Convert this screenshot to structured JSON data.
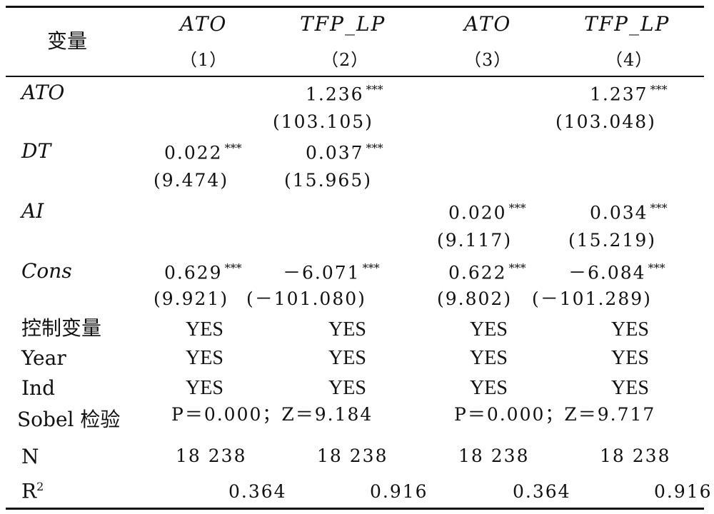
{
  "header": {
    "variable": "变量",
    "columns": [
      {
        "var": "ATO",
        "num": "（1）"
      },
      {
        "var": "TFP_LP",
        "num": "（2）"
      },
      {
        "var": "ATO",
        "num": "（3）"
      },
      {
        "var": "TFP_LP",
        "num": "（4）"
      }
    ]
  },
  "stars": "***",
  "rows": {
    "ato": {
      "label": "ATO",
      "c2": {
        "coef": "1.236",
        "t": "(103.105)"
      },
      "c4": {
        "coef": "1.237",
        "t": "(103.048)"
      }
    },
    "dt": {
      "label": "DT",
      "c1": {
        "coef": "0.022",
        "t": "(9.474)"
      },
      "c2": {
        "coef": "0.037",
        "t": "(15.965)"
      }
    },
    "ai": {
      "label": "AI",
      "c3": {
        "coef": "0.020",
        "t": "(9.117)"
      },
      "c4": {
        "coef": "0.034",
        "t": "(15.219)"
      }
    },
    "cons": {
      "label": "Cons",
      "c1": {
        "coef": "0.629",
        "t": "(9.921)"
      },
      "c2": {
        "coef": "－6.071",
        "t": "(－101.080)"
      },
      "c3": {
        "coef": "0.622",
        "t": "(9.802)"
      },
      "c4": {
        "coef": "－6.084",
        "t": "(－101.289)"
      }
    },
    "controls": {
      "label": "控制变量",
      "values": [
        "YES",
        "YES",
        "YES",
        "YES"
      ]
    },
    "year": {
      "label": "Year",
      "values": [
        "YES",
        "YES",
        "YES",
        "YES"
      ]
    },
    "ind": {
      "label": "Ind",
      "values": [
        "YES",
        "YES",
        "YES",
        "YES"
      ]
    },
    "sobel": {
      "label": "Sobel 检验",
      "left": "P＝0.000；Z＝9.184",
      "right": "P＝0.000；Z＝9.717"
    },
    "n": {
      "label": "N",
      "values": [
        "18 238",
        "18 238",
        "18 238",
        "18 238"
      ]
    },
    "r2": {
      "label": "R",
      "label_sup": "2",
      "values": [
        "0.364",
        "0.916",
        "0.364",
        "0.916"
      ]
    }
  }
}
